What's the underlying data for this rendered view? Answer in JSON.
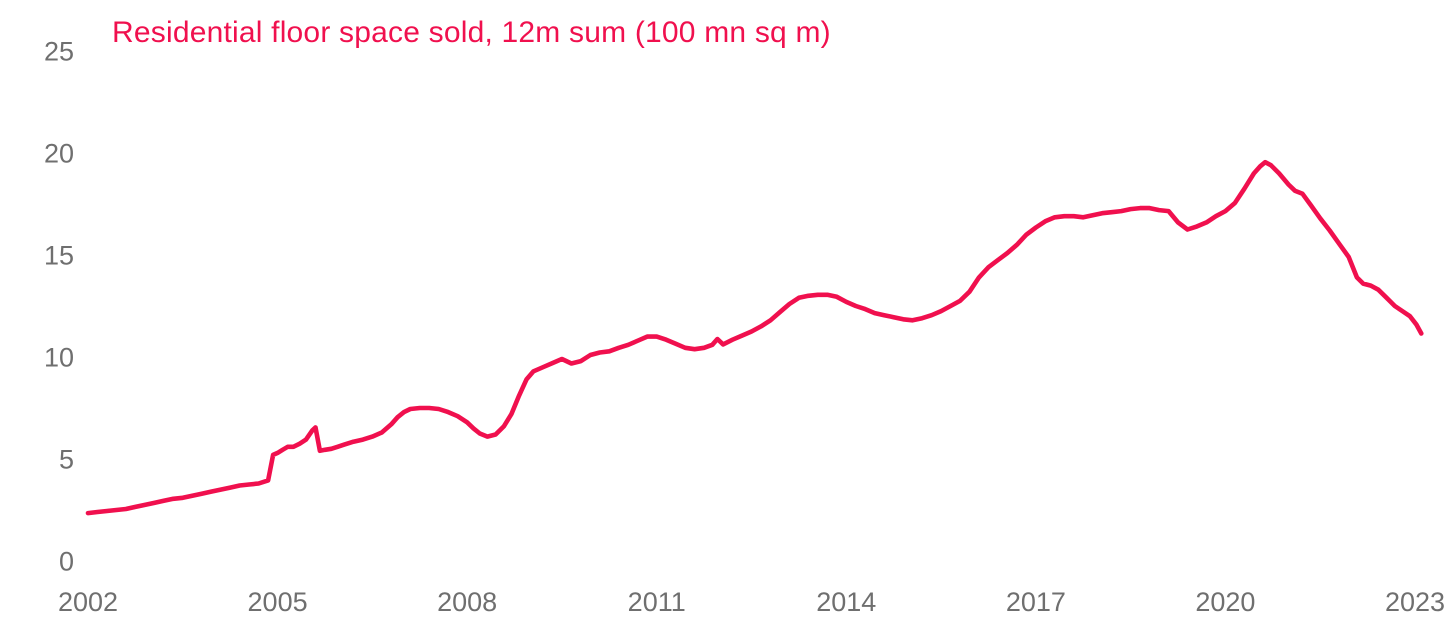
{
  "chart_data": {
    "type": "line",
    "title": "Residential floor space sold, 12m sum (100 mn sq m)",
    "xlabel": "",
    "ylabel": "",
    "x_ticks": [
      2002,
      2005,
      2008,
      2011,
      2014,
      2017,
      2020,
      2023
    ],
    "y_ticks": [
      0,
      5,
      10,
      15,
      20,
      25
    ],
    "xlim": [
      2002,
      2023
    ],
    "ylim": [
      0,
      25
    ],
    "grid": false,
    "legend": false,
    "colors": {
      "line": "#f0104e",
      "title": "#f0104e",
      "axis_labels": "#6f6f6f",
      "background": "#ffffff"
    },
    "series": [
      {
        "name": "Residential floor space sold, 12m sum (100 mn sq m)",
        "x": [
          2002.0,
          2002.15,
          2002.3,
          2002.45,
          2002.6,
          2002.75,
          2002.9,
          2003.05,
          2003.2,
          2003.35,
          2003.5,
          2003.65,
          2003.8,
          2003.95,
          2004.1,
          2004.25,
          2004.4,
          2004.55,
          2004.7,
          2004.85,
          2004.93,
          2005.0,
          2005.08,
          2005.16,
          2005.25,
          2005.35,
          2005.45,
          2005.55,
          2005.6,
          2005.67,
          2005.75,
          2005.85,
          2005.95,
          2006.05,
          2006.2,
          2006.35,
          2006.5,
          2006.65,
          2006.8,
          2006.9,
          2007.0,
          2007.1,
          2007.25,
          2007.4,
          2007.55,
          2007.7,
          2007.85,
          2008.0,
          2008.1,
          2008.2,
          2008.32,
          2008.45,
          2008.58,
          2008.7,
          2008.82,
          2008.94,
          2009.05,
          2009.2,
          2009.35,
          2009.5,
          2009.65,
          2009.8,
          2009.95,
          2010.1,
          2010.25,
          2010.4,
          2010.55,
          2010.7,
          2010.85,
          2011.0,
          2011.15,
          2011.3,
          2011.45,
          2011.6,
          2011.75,
          2011.88,
          2011.96,
          2012.05,
          2012.2,
          2012.35,
          2012.5,
          2012.65,
          2012.8,
          2012.95,
          2013.1,
          2013.25,
          2013.4,
          2013.55,
          2013.7,
          2013.85,
          2014.0,
          2014.15,
          2014.3,
          2014.45,
          2014.6,
          2014.75,
          2014.9,
          2015.05,
          2015.2,
          2015.35,
          2015.5,
          2015.65,
          2015.8,
          2015.95,
          2016.1,
          2016.25,
          2016.4,
          2016.55,
          2016.7,
          2016.85,
          2017.0,
          2017.15,
          2017.3,
          2017.45,
          2017.6,
          2017.75,
          2017.9,
          2018.05,
          2018.2,
          2018.35,
          2018.5,
          2018.65,
          2018.8,
          2018.95,
          2019.1,
          2019.25,
          2019.4,
          2019.55,
          2019.7,
          2019.85,
          2020.0,
          2020.15,
          2020.3,
          2020.45,
          2020.55,
          2020.63,
          2020.72,
          2020.85,
          2021.0,
          2021.1,
          2021.22,
          2021.35,
          2021.5,
          2021.65,
          2021.8,
          2021.95,
          2022.08,
          2022.18,
          2022.3,
          2022.42,
          2022.55,
          2022.68,
          2022.8,
          2022.92,
          2023.02,
          2023.1
        ],
        "y": [
          2.35,
          2.4,
          2.45,
          2.5,
          2.55,
          2.65,
          2.75,
          2.85,
          2.95,
          3.05,
          3.1,
          3.2,
          3.3,
          3.4,
          3.5,
          3.6,
          3.7,
          3.75,
          3.8,
          3.95,
          5.2,
          5.3,
          5.45,
          5.6,
          5.6,
          5.75,
          5.95,
          6.4,
          6.55,
          5.4,
          5.45,
          5.5,
          5.6,
          5.7,
          5.85,
          5.95,
          6.1,
          6.3,
          6.7,
          7.05,
          7.3,
          7.45,
          7.5,
          7.5,
          7.45,
          7.3,
          7.1,
          6.8,
          6.5,
          6.25,
          6.1,
          6.2,
          6.6,
          7.2,
          8.1,
          8.9,
          9.3,
          9.5,
          9.7,
          9.9,
          9.68,
          9.8,
          10.1,
          10.22,
          10.28,
          10.45,
          10.6,
          10.8,
          11.0,
          11.0,
          10.85,
          10.65,
          10.45,
          10.38,
          10.45,
          10.6,
          10.88,
          10.62,
          10.85,
          11.05,
          11.25,
          11.5,
          11.8,
          12.2,
          12.6,
          12.9,
          13.0,
          13.05,
          13.05,
          12.95,
          12.7,
          12.5,
          12.35,
          12.15,
          12.05,
          11.95,
          11.85,
          11.8,
          11.9,
          12.05,
          12.25,
          12.5,
          12.75,
          13.2,
          13.9,
          14.4,
          14.75,
          15.1,
          15.5,
          16.0,
          16.35,
          16.65,
          16.85,
          16.9,
          16.9,
          16.85,
          16.95,
          17.05,
          17.1,
          17.15,
          17.25,
          17.3,
          17.3,
          17.2,
          17.15,
          16.6,
          16.25,
          16.4,
          16.6,
          16.9,
          17.15,
          17.55,
          18.25,
          19.0,
          19.35,
          19.55,
          19.4,
          19.0,
          18.45,
          18.15,
          18.0,
          17.45,
          16.8,
          16.2,
          15.55,
          14.9,
          13.9,
          13.6,
          13.5,
          13.3,
          12.9,
          12.5,
          12.25,
          12.0,
          11.6,
          11.15
        ]
      }
    ]
  }
}
